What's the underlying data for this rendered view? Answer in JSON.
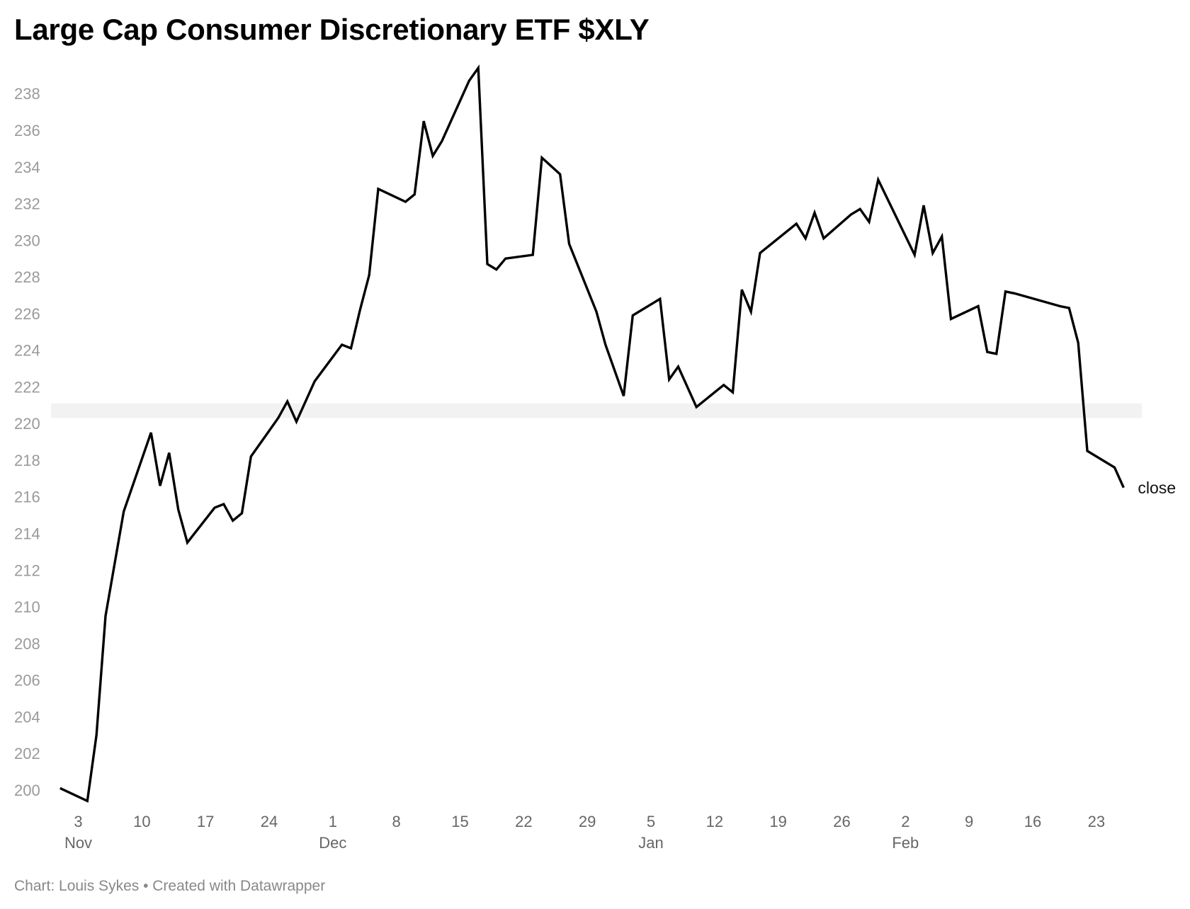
{
  "header": {
    "title": "Large Cap Consumer Discretionary ETF $XLY"
  },
  "footer": {
    "credit": "Chart: Louis Sykes • Created with Datawrapper"
  },
  "chart_data": {
    "type": "line",
    "title": "Large Cap Consumer Discretionary ETF $XLY",
    "xlabel": "",
    "ylabel": "",
    "ylim": [
      199.3,
      239.4
    ],
    "yticks": [
      200,
      202,
      204,
      206,
      208,
      210,
      212,
      214,
      216,
      218,
      220,
      222,
      224,
      226,
      228,
      230,
      232,
      234,
      236,
      238
    ],
    "x_ticks": [
      {
        "date": "2021-11-03",
        "label": "3",
        "month": "Nov"
      },
      {
        "date": "2021-11-10",
        "label": "10",
        "month": ""
      },
      {
        "date": "2021-11-17",
        "label": "17",
        "month": ""
      },
      {
        "date": "2021-11-24",
        "label": "24",
        "month": ""
      },
      {
        "date": "2021-12-01",
        "label": "1",
        "month": "Dec"
      },
      {
        "date": "2021-12-08",
        "label": "8",
        "month": ""
      },
      {
        "date": "2021-12-15",
        "label": "15",
        "month": ""
      },
      {
        "date": "2021-12-22",
        "label": "22",
        "month": ""
      },
      {
        "date": "2021-12-29",
        "label": "29",
        "month": ""
      },
      {
        "date": "2022-01-05",
        "label": "5",
        "month": "Jan"
      },
      {
        "date": "2022-01-12",
        "label": "12",
        "month": ""
      },
      {
        "date": "2022-01-19",
        "label": "19",
        "month": ""
      },
      {
        "date": "2022-01-26",
        "label": "26",
        "month": ""
      },
      {
        "date": "2022-02-02",
        "label": "2",
        "month": "Feb"
      },
      {
        "date": "2022-02-09",
        "label": "9",
        "month": ""
      },
      {
        "date": "2022-02-16",
        "label": "16",
        "month": ""
      },
      {
        "date": "2022-02-23",
        "label": "23",
        "month": ""
      }
    ],
    "x_range": [
      "2021-10-31",
      "2022-02-28"
    ],
    "highlight_band": {
      "y_from": 220.3,
      "y_to": 221.1,
      "color": "#f2f2f2"
    },
    "grid": false,
    "series": [
      {
        "name": "close",
        "color": "#000000",
        "points": [
          [
            "2021-11-01",
            200.1
          ],
          [
            "2021-11-04",
            199.4
          ],
          [
            "2021-11-05",
            203.0
          ],
          [
            "2021-11-06",
            209.5
          ],
          [
            "2021-11-08",
            215.2
          ],
          [
            "2021-11-11",
            219.5
          ],
          [
            "2021-11-12",
            216.6
          ],
          [
            "2021-11-13",
            218.4
          ],
          [
            "2021-11-14",
            215.3
          ],
          [
            "2021-11-15",
            213.5
          ],
          [
            "2021-11-18",
            215.4
          ],
          [
            "2021-11-19",
            215.6
          ],
          [
            "2021-11-20",
            214.7
          ],
          [
            "2021-11-21",
            215.1
          ],
          [
            "2021-11-22",
            218.2
          ],
          [
            "2021-11-25",
            220.3
          ],
          [
            "2021-11-26",
            221.2
          ],
          [
            "2021-11-27",
            220.1
          ],
          [
            "2021-11-29",
            222.3
          ],
          [
            "2021-12-02",
            224.3
          ],
          [
            "2021-12-03",
            224.1
          ],
          [
            "2021-12-04",
            226.2
          ],
          [
            "2021-12-05",
            228.1
          ],
          [
            "2021-12-06",
            232.8
          ],
          [
            "2021-12-09",
            232.1
          ],
          [
            "2021-12-10",
            232.5
          ],
          [
            "2021-12-11",
            236.5
          ],
          [
            "2021-12-12",
            234.6
          ],
          [
            "2021-12-13",
            235.4
          ],
          [
            "2021-12-16",
            238.7
          ],
          [
            "2021-12-17",
            239.4
          ],
          [
            "2021-12-18",
            228.7
          ],
          [
            "2021-12-19",
            228.4
          ],
          [
            "2021-12-20",
            229.0
          ],
          [
            "2021-12-23",
            229.2
          ],
          [
            "2021-12-24",
            234.5
          ],
          [
            "2021-12-26",
            233.6
          ],
          [
            "2021-12-27",
            229.8
          ],
          [
            "2021-12-30",
            226.1
          ],
          [
            "2021-12-31",
            224.3
          ],
          [
            "2022-01-02",
            221.5
          ],
          [
            "2022-01-03",
            225.9
          ],
          [
            "2022-01-06",
            226.8
          ],
          [
            "2022-01-07",
            222.4
          ],
          [
            "2022-01-08",
            223.1
          ],
          [
            "2022-01-10",
            220.9
          ],
          [
            "2022-01-13",
            222.1
          ],
          [
            "2022-01-14",
            221.7
          ],
          [
            "2022-01-15",
            227.3
          ],
          [
            "2022-01-16",
            226.1
          ],
          [
            "2022-01-17",
            229.3
          ],
          [
            "2022-01-21",
            230.9
          ],
          [
            "2022-01-22",
            230.1
          ],
          [
            "2022-01-23",
            231.5
          ],
          [
            "2022-01-24",
            230.1
          ],
          [
            "2022-01-27",
            231.4
          ],
          [
            "2022-01-28",
            231.7
          ],
          [
            "2022-01-29",
            231.0
          ],
          [
            "2022-01-30",
            233.3
          ],
          [
            "2022-02-03",
            229.2
          ],
          [
            "2022-02-04",
            231.9
          ],
          [
            "2022-02-05",
            229.3
          ],
          [
            "2022-02-06",
            230.2
          ],
          [
            "2022-02-07",
            225.7
          ],
          [
            "2022-02-10",
            226.4
          ],
          [
            "2022-02-11",
            223.9
          ],
          [
            "2022-02-12",
            223.8
          ],
          [
            "2022-02-13",
            227.2
          ],
          [
            "2022-02-14",
            227.1
          ],
          [
            "2022-02-19",
            226.4
          ],
          [
            "2022-02-20",
            226.3
          ],
          [
            "2022-02-21",
            224.4
          ],
          [
            "2022-02-22",
            218.5
          ],
          [
            "2022-02-25",
            217.6
          ],
          [
            "2022-02-26",
            216.5
          ]
        ]
      }
    ]
  }
}
